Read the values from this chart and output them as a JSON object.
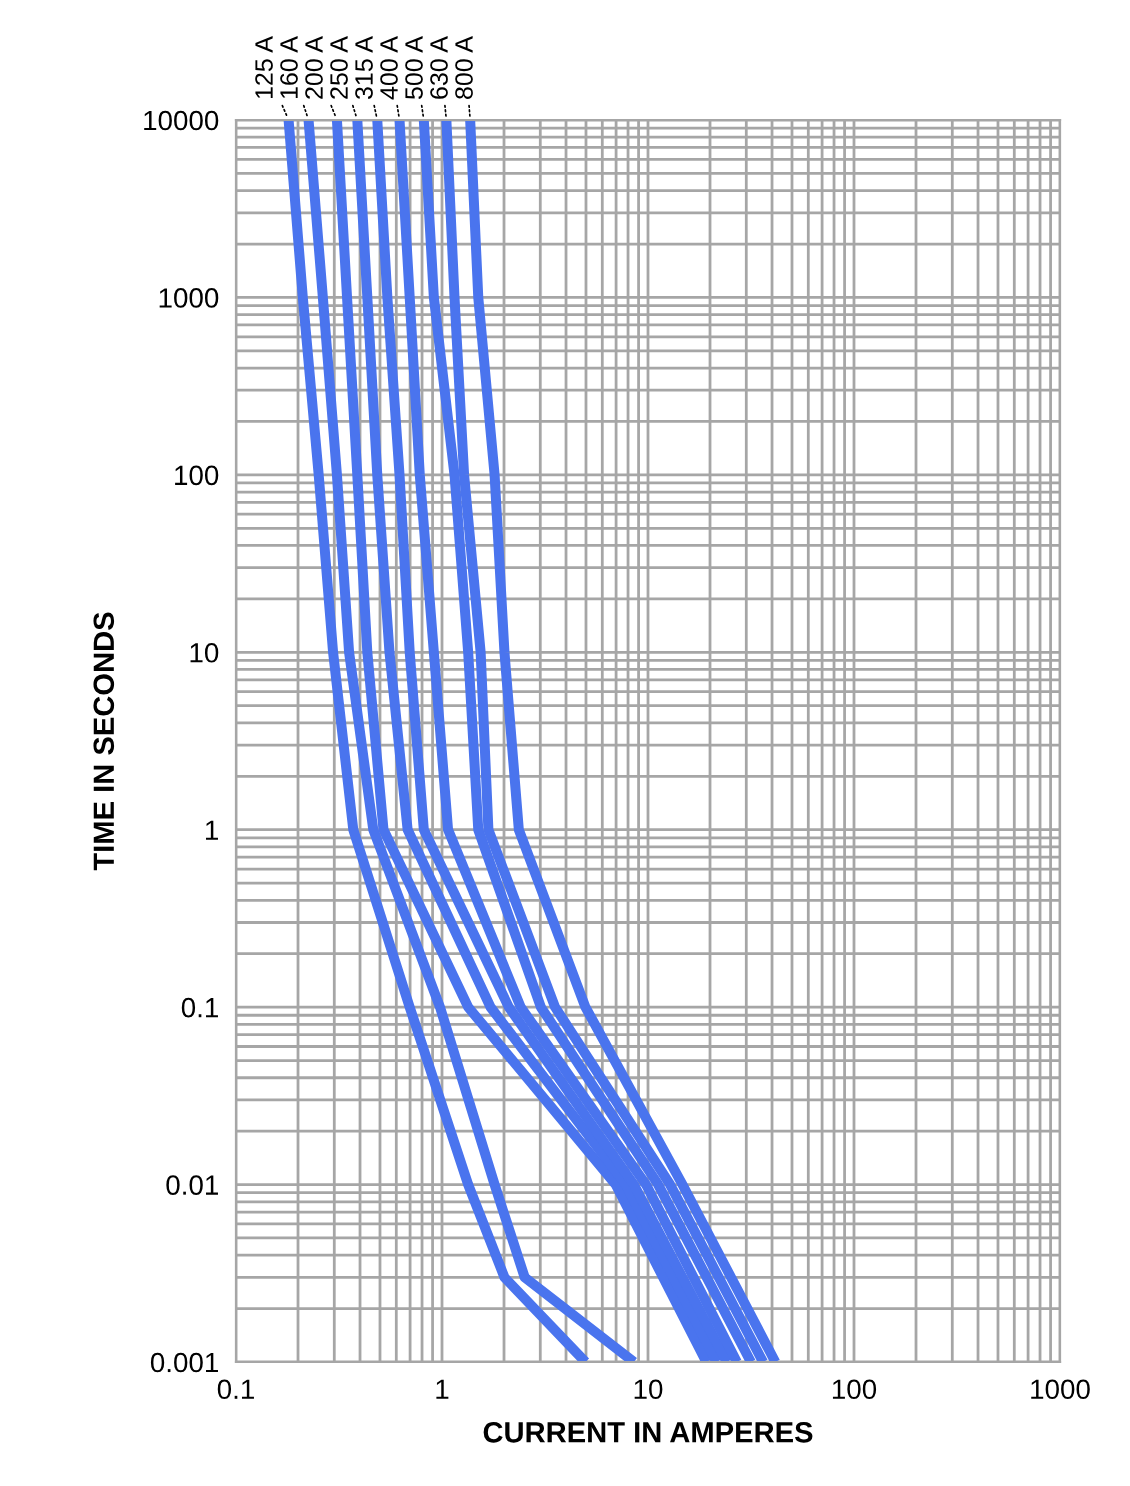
{
  "chart_data": {
    "type": "line",
    "xlabel": "CURRENT IN AMPERES",
    "ylabel": "TIME IN SECONDS",
    "log": "xy",
    "xlim": [
      0.1,
      1000
    ],
    "ylim": [
      0.001,
      10000
    ],
    "xticks": [
      0.1,
      1,
      10,
      100,
      1000
    ],
    "yticks": [
      0.001,
      0.01,
      0.1,
      1,
      10,
      100,
      1000,
      10000
    ],
    "grid": true,
    "legend": false,
    "marker": "none",
    "line_style": "solid",
    "series": [
      {
        "name": "125 A",
        "color": "#4a74ee",
        "x": [
          0.18,
          0.211,
          0.252,
          0.296,
          0.371,
          0.697,
          1.34,
          2.01,
          4.97
        ],
        "values": [
          10000,
          1000,
          100,
          10,
          1,
          0.1,
          0.01,
          0.003,
          0.001
        ]
      },
      {
        "name": "160 A",
        "color": "#4a74ee",
        "x": [
          0.225,
          0.264,
          0.309,
          0.354,
          0.464,
          0.978,
          1.8,
          2.52,
          8.54
        ],
        "values": [
          10000,
          1000,
          100,
          10,
          1,
          0.1,
          0.01,
          0.003,
          0.001
        ]
      },
      {
        "name": "200 A",
        "color": "#4a74ee",
        "x": [
          0.309,
          0.346,
          0.388,
          0.434,
          0.52,
          1.34,
          6.97,
          19.2
        ],
        "values": [
          10000,
          1000,
          100,
          10,
          1,
          0.1,
          0.01,
          0.001
        ]
      },
      {
        "name": "250 A",
        "color": "#4a74ee",
        "x": [
          0.388,
          0.434,
          0.485,
          0.556,
          0.681,
          1.72,
          7.8,
          21.5
        ],
        "values": [
          10000,
          1000,
          100,
          10,
          1,
          0.1,
          0.01,
          0.001
        ]
      },
      {
        "name": "315 A",
        "color": "#4a74ee",
        "x": [
          0.485,
          0.543,
          0.622,
          0.697,
          0.816,
          2.11,
          8.54,
          24.1
        ],
        "values": [
          10000,
          1000,
          100,
          10,
          1,
          0.1,
          0.01,
          0.001
        ]
      },
      {
        "name": "400 A",
        "color": "#4a74ee",
        "x": [
          0.622,
          0.697,
          0.78,
          0.913,
          1.07,
          2.41,
          9.78,
          27.0
        ],
        "values": [
          10000,
          1000,
          100,
          10,
          1,
          0.1,
          0.01,
          0.001
        ]
      },
      {
        "name": "500 A",
        "color": "#4a74ee",
        "x": [
          0.816,
          0.913,
          1.15,
          1.34,
          1.5,
          3.02,
          11.2,
          31.6
        ],
        "values": [
          10000,
          1000,
          100,
          10,
          1,
          0.1,
          0.01,
          0.001
        ]
      },
      {
        "name": "630 A",
        "color": "#4a74ee",
        "x": [
          1.05,
          1.15,
          1.28,
          1.54,
          1.68,
          3.54,
          12.8,
          36.2
        ],
        "values": [
          10000,
          1000,
          100,
          10,
          1,
          0.1,
          0.01,
          0.001
        ]
      },
      {
        "name": "800 A",
        "color": "#4a74ee",
        "x": [
          1.37,
          1.5,
          1.8,
          2.01,
          2.36,
          4.97,
          14.7,
          41.5
        ],
        "values": [
          10000,
          1000,
          100,
          10,
          1,
          0.1,
          0.01,
          0.001
        ]
      }
    ]
  }
}
